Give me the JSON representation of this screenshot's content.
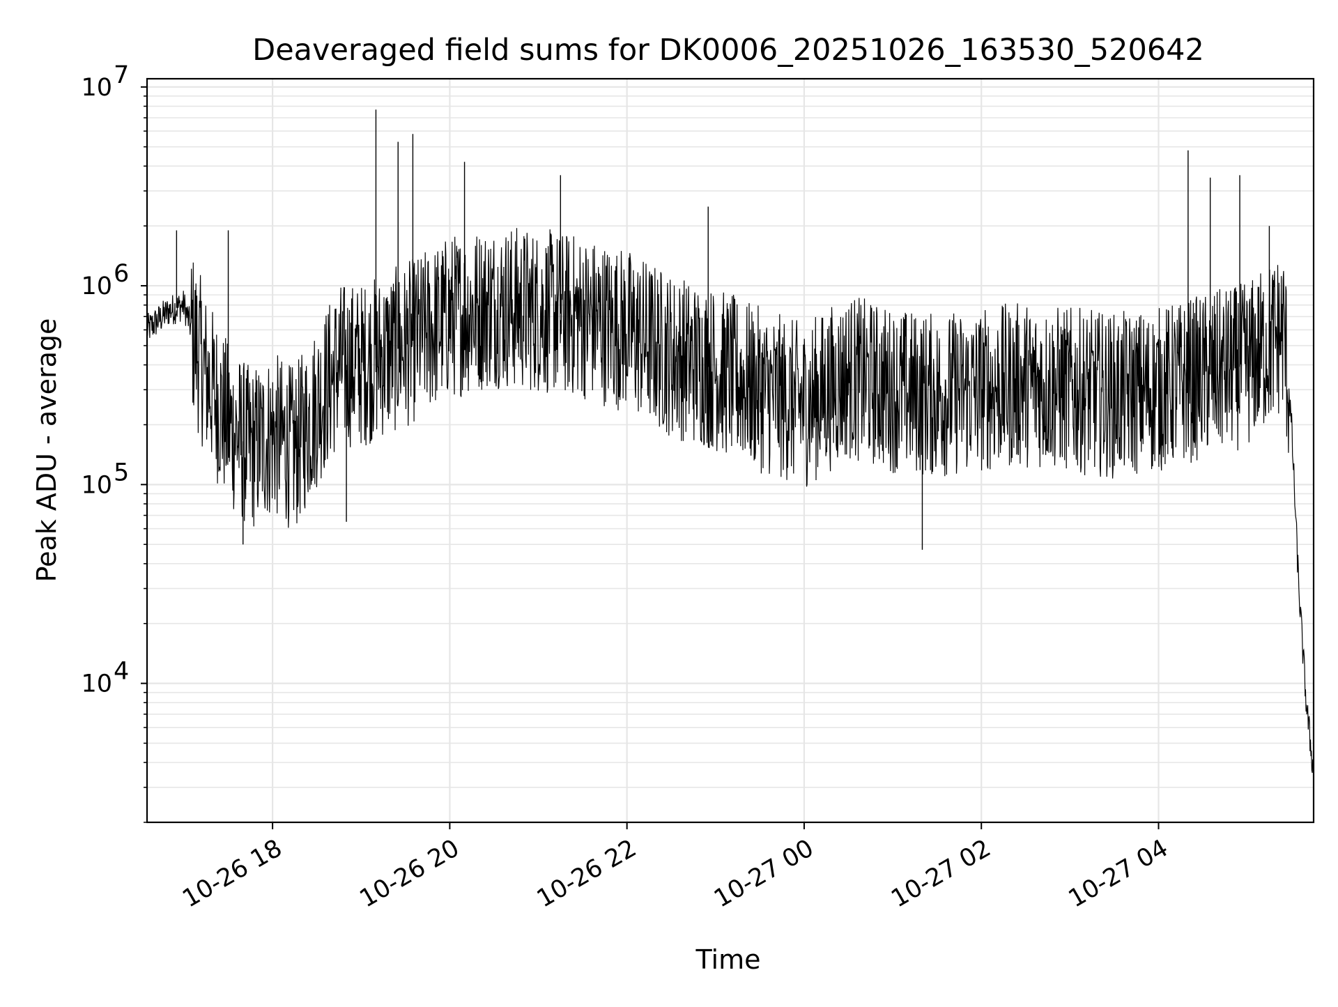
{
  "chart_data": {
    "type": "line",
    "title": "Deaveraged field sums for DK0006_20251026_163530_520642",
    "xlabel": "Time",
    "ylabel": "Peak ADU - average",
    "x_scale": "time",
    "y_scale": "log",
    "xlim": [
      "2025-10-26 16:35",
      "2025-10-27 05:45"
    ],
    "ylim": [
      2000,
      11000000
    ],
    "grid": true,
    "line_color": "#000000",
    "x_ticks": [
      {
        "t": "2025-10-26 18:00",
        "label": "10-26 18"
      },
      {
        "t": "2025-10-26 20:00",
        "label": "10-26 20"
      },
      {
        "t": "2025-10-26 22:00",
        "label": "10-26 22"
      },
      {
        "t": "2025-10-27 00:00",
        "label": "10-27 00"
      },
      {
        "t": "2025-10-27 02:00",
        "label": "10-27 02"
      },
      {
        "t": "2025-10-27 04:00",
        "label": "10-27 04"
      }
    ],
    "y_ticks": [
      {
        "value": 10000,
        "base": "10",
        "exp": "4"
      },
      {
        "value": 100000,
        "base": "10",
        "exp": "5"
      },
      {
        "value": 1000000,
        "base": "10",
        "exp": "6"
      },
      {
        "value": 10000000,
        "base": "10",
        "exp": "7"
      }
    ],
    "series": [
      {
        "points": [
          [
            "2025-10-26 16:35",
            600000
          ],
          [
            "2025-10-26 16:50",
            750000
          ],
          [
            "2025-10-26 17:00",
            800000
          ],
          [
            "2025-10-26 17:15",
            350000
          ],
          [
            "2025-10-26 17:30",
            200000
          ],
          [
            "2025-10-26 17:45",
            150000
          ],
          [
            "2025-10-26 18:00",
            180000
          ],
          [
            "2025-10-26 18:15",
            150000
          ],
          [
            "2025-10-26 18:30",
            250000
          ],
          [
            "2025-10-26 18:45",
            400000
          ],
          [
            "2025-10-26 19:00",
            400000
          ],
          [
            "2025-10-26 19:30",
            500000
          ],
          [
            "2025-10-26 20:00",
            700000
          ],
          [
            "2025-10-26 20:30",
            800000
          ],
          [
            "2025-10-26 21:00",
            750000
          ],
          [
            "2025-10-26 21:30",
            700000
          ],
          [
            "2025-10-26 22:00",
            600000
          ],
          [
            "2025-10-26 22:30",
            450000
          ],
          [
            "2025-10-26 23:00",
            380000
          ],
          [
            "2025-10-26 23:30",
            300000
          ],
          [
            "2025-10-27 00:00",
            250000
          ],
          [
            "2025-10-27 00:30",
            350000
          ],
          [
            "2025-10-27 01:00",
            300000
          ],
          [
            "2025-10-27 01:30",
            280000
          ],
          [
            "2025-10-27 02:00",
            300000
          ],
          [
            "2025-10-27 02:30",
            320000
          ],
          [
            "2025-10-27 03:00",
            300000
          ],
          [
            "2025-10-27 03:30",
            280000
          ],
          [
            "2025-10-27 04:00",
            300000
          ],
          [
            "2025-10-27 04:30",
            350000
          ],
          [
            "2025-10-27 05:00",
            400000
          ],
          [
            "2025-10-27 05:25",
            600000
          ],
          [
            "2025-10-27 05:30",
            200000
          ],
          [
            "2025-10-27 05:35",
            30000
          ],
          [
            "2025-10-27 05:40",
            8000
          ],
          [
            "2025-10-27 05:45",
            3500
          ]
        ],
        "spikes": [
          [
            "2025-10-26 16:55",
            1900000
          ],
          [
            "2025-10-26 17:30",
            1900000
          ],
          [
            "2025-10-26 19:10",
            7700000
          ],
          [
            "2025-10-26 19:25",
            5300000
          ],
          [
            "2025-10-26 19:35",
            5800000
          ],
          [
            "2025-10-26 20:10",
            4200000
          ],
          [
            "2025-10-26 21:15",
            3600000
          ],
          [
            "2025-10-26 22:55",
            2500000
          ],
          [
            "2025-10-27 04:20",
            4800000
          ],
          [
            "2025-10-27 04:35",
            3500000
          ],
          [
            "2025-10-27 04:55",
            3600000
          ],
          [
            "2025-10-27 05:15",
            2000000
          ]
        ],
        "dips": [
          [
            "2025-10-26 17:40",
            50000
          ],
          [
            "2025-10-26 18:50",
            65000
          ],
          [
            "2025-10-27 01:20",
            47000
          ]
        ]
      }
    ]
  }
}
